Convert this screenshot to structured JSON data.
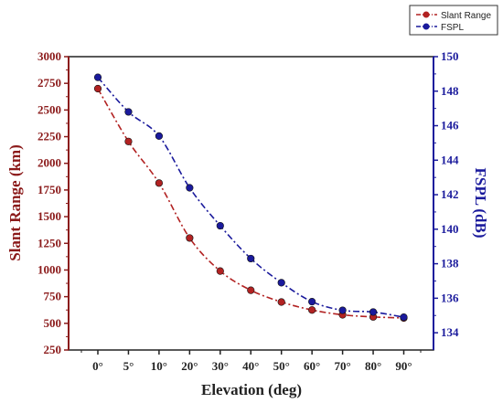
{
  "chart_data": {
    "type": "line",
    "xlabel": "Elevation (deg)",
    "ylabel": "Slant Range (km)",
    "y2label": "FSPL (dB)",
    "categories": [
      "0°",
      "5°",
      "10°",
      "20°",
      "30°",
      "40°",
      "50°",
      "60°",
      "70°",
      "80°",
      "90°"
    ],
    "ylim": [
      250,
      3000
    ],
    "yticks": [
      250,
      500,
      750,
      1000,
      1250,
      1500,
      1750,
      2000,
      2250,
      2500,
      2750,
      3000
    ],
    "y2lim": [
      133,
      150
    ],
    "y2ticks": [
      134,
      136,
      138,
      140,
      142,
      144,
      146,
      148,
      150
    ],
    "legend_position": "top-right",
    "grid": false,
    "series": [
      {
        "name": "Slant Range",
        "axis": "left",
        "color": "#b22222",
        "values": [
          2700,
          2205,
          1815,
          1300,
          990,
          810,
          700,
          625,
          580,
          560,
          550
        ]
      },
      {
        "name": "FSPL",
        "axis": "right",
        "color": "#1a1a9c",
        "values": [
          148.8,
          146.8,
          145.4,
          142.4,
          140.2,
          138.3,
          136.9,
          135.8,
          135.3,
          135.2,
          134.9
        ]
      }
    ],
    "colors": {
      "left_axis": "#8b1a1a",
      "right_axis": "#1a1a9c",
      "x_axis": "#222222"
    }
  }
}
